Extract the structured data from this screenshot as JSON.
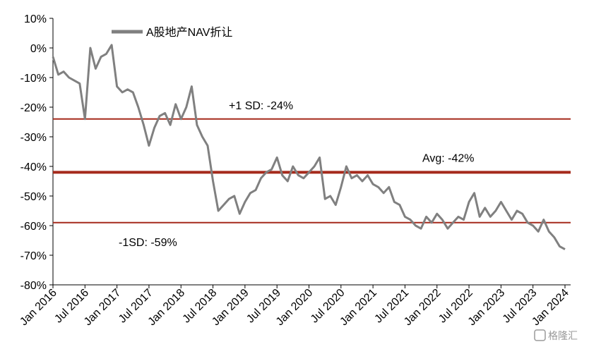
{
  "chart_data": {
    "type": "line",
    "title": "",
    "xlabel": "",
    "ylabel": "",
    "ylim": [
      -80,
      10
    ],
    "yticks": [
      10,
      0,
      -10,
      -20,
      -30,
      -40,
      -50,
      -60,
      -70,
      -80
    ],
    "ytick_labels": [
      "10%",
      "0%",
      "-10%",
      "-20%",
      "-30%",
      "-40%",
      "-50%",
      "-60%",
      "-70%",
      "-80%"
    ],
    "xlim": [
      "2016-01",
      "2024-01"
    ],
    "xtick_labels": [
      "Jan 2016",
      "Jul 2016",
      "Jan 2017",
      "Jul 2017",
      "Jan 2018",
      "Jul 2018",
      "Jan 2019",
      "Jul 2019",
      "Jan 2020",
      "Jul 2020",
      "Jan 2021",
      "Jul 2021",
      "Jan 2022",
      "Jul 2022",
      "Jan 2023",
      "Jul 2023",
      "Jan 2024"
    ],
    "legend": {
      "position": "top-left",
      "entries": [
        "A股地产NAV折让"
      ]
    },
    "series": [
      {
        "name": "A股地产NAV折让",
        "color": "#808080",
        "x": [
          "2016-01",
          "2016-02",
          "2016-03",
          "2016-04",
          "2016-05",
          "2016-06",
          "2016-07",
          "2016-08",
          "2016-09",
          "2016-10",
          "2016-11",
          "2016-12",
          "2017-01",
          "2017-02",
          "2017-03",
          "2017-04",
          "2017-05",
          "2017-06",
          "2017-07",
          "2017-08",
          "2017-09",
          "2017-10",
          "2017-11",
          "2017-12",
          "2018-01",
          "2018-02",
          "2018-03",
          "2018-04",
          "2018-05",
          "2018-06",
          "2018-07",
          "2018-08",
          "2018-09",
          "2018-10",
          "2018-11",
          "2018-12",
          "2019-01",
          "2019-02",
          "2019-03",
          "2019-04",
          "2019-05",
          "2019-06",
          "2019-07",
          "2019-08",
          "2019-09",
          "2019-10",
          "2019-11",
          "2019-12",
          "2020-01",
          "2020-02",
          "2020-03",
          "2020-04",
          "2020-05",
          "2020-06",
          "2020-07",
          "2020-08",
          "2020-09",
          "2020-10",
          "2020-11",
          "2020-12",
          "2021-01",
          "2021-02",
          "2021-03",
          "2021-04",
          "2021-05",
          "2021-06",
          "2021-07",
          "2021-08",
          "2021-09",
          "2021-10",
          "2021-11",
          "2021-12",
          "2022-01",
          "2022-02",
          "2022-03",
          "2022-04",
          "2022-05",
          "2022-06",
          "2022-07",
          "2022-08",
          "2022-09",
          "2022-10",
          "2022-11",
          "2022-12",
          "2023-01",
          "2023-02",
          "2023-03",
          "2023-04",
          "2023-05",
          "2023-06",
          "2023-07",
          "2023-08",
          "2023-09",
          "2023-10",
          "2023-11",
          "2023-12",
          "2024-01"
        ],
        "values": [
          -3,
          -9,
          -8,
          -10,
          -11,
          -12,
          -24,
          0,
          -7,
          -3,
          -2,
          1,
          -13,
          -15,
          -14,
          -15,
          -20,
          -26,
          -33,
          -27,
          -23,
          -22,
          -26,
          -19,
          -24,
          -20,
          -13,
          -26,
          -30,
          -33,
          -45,
          -55,
          -53,
          -51,
          -50,
          -56,
          -52,
          -49,
          -48,
          -44,
          -42,
          -41,
          -37,
          -43,
          -45,
          -40,
          -43,
          -44,
          -42,
          -40,
          -37,
          -51,
          -50,
          -53,
          -47,
          -40,
          -44,
          -43,
          -45,
          -43,
          -46,
          -47,
          -49,
          -47,
          -52,
          -53,
          -57,
          -58,
          -60,
          -61,
          -57,
          -59,
          -56,
          -58,
          -61,
          -59,
          -57,
          -58,
          -52,
          -49,
          -57,
          -54,
          -57,
          -55,
          -52,
          -55,
          -58,
          -55,
          -56,
          -59,
          -60,
          -62,
          -58,
          -62,
          -64,
          -67,
          -68
        ]
      }
    ],
    "reference_lines": [
      {
        "label": "+1 SD: -24%",
        "value": -24,
        "color": "#a52a1c"
      },
      {
        "label": "Avg: -42%",
        "value": -42,
        "color": "#a52a1c"
      },
      {
        "label": "-1SD: -59%",
        "value": -59,
        "color": "#a52a1c"
      }
    ],
    "grid": false
  },
  "watermark": {
    "text": "格隆汇"
  }
}
